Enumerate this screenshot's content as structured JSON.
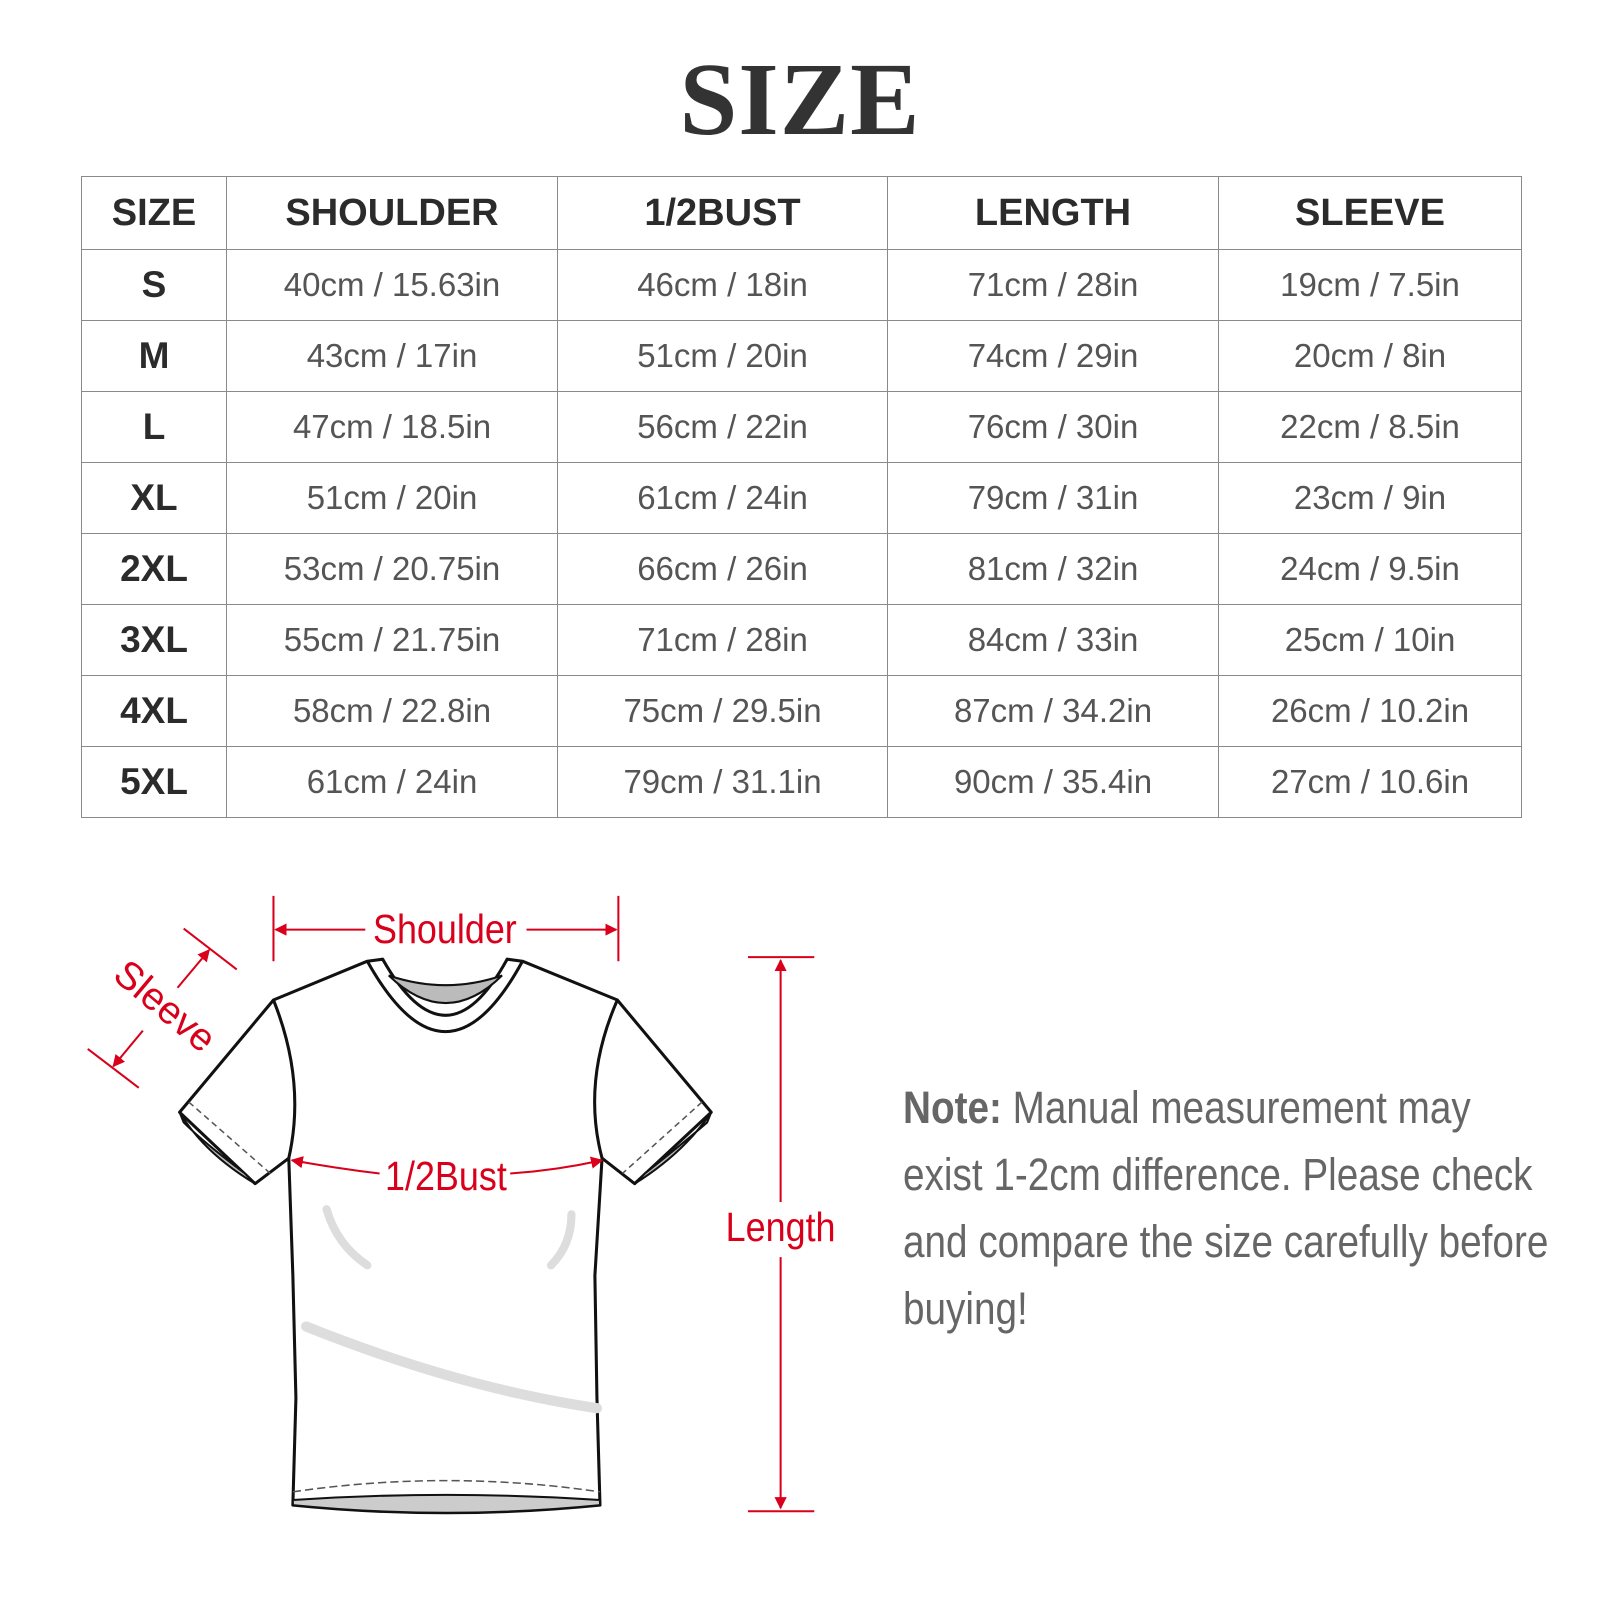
{
  "title": "SIZE",
  "table": {
    "headers": [
      "SIZE",
      "SHOULDER",
      "1/2BUST",
      "LENGTH",
      "SLEEVE"
    ],
    "rows": [
      [
        "S",
        "40cm / 15.63in",
        "46cm / 18in",
        "71cm / 28in",
        "19cm / 7.5in"
      ],
      [
        "M",
        "43cm / 17in",
        "51cm / 20in",
        "74cm / 29in",
        "20cm / 8in"
      ],
      [
        "L",
        "47cm / 18.5in",
        "56cm / 22in",
        "76cm / 30in",
        "22cm / 8.5in"
      ],
      [
        "XL",
        "51cm / 20in",
        "61cm / 24in",
        "79cm / 31in",
        "23cm / 9in"
      ],
      [
        "2XL",
        "53cm / 20.75in",
        "66cm / 26in",
        "81cm / 32in",
        "24cm / 9.5in"
      ],
      [
        "3XL",
        "55cm / 21.75in",
        "71cm / 28in",
        "84cm / 33in",
        "25cm / 10in"
      ],
      [
        "4XL",
        "58cm / 22.8in",
        "75cm / 29.5in",
        "87cm / 34.2in",
        "26cm / 10.2in"
      ],
      [
        "5XL",
        "61cm / 24in",
        "79cm / 31.1in",
        "90cm / 35.4in",
        "27cm / 10.6in"
      ]
    ]
  },
  "diagram": {
    "shoulder_label": "Shoulder",
    "sleeve_label": "Sleeve",
    "bust_label": "1/2Bust",
    "length_label": "Length",
    "accent_color": "#d9001b"
  },
  "note": {
    "label": "Note:",
    "text": " Manual measurement may exist 1-2cm difference. Please check and compare the size carefully before buying!"
  }
}
